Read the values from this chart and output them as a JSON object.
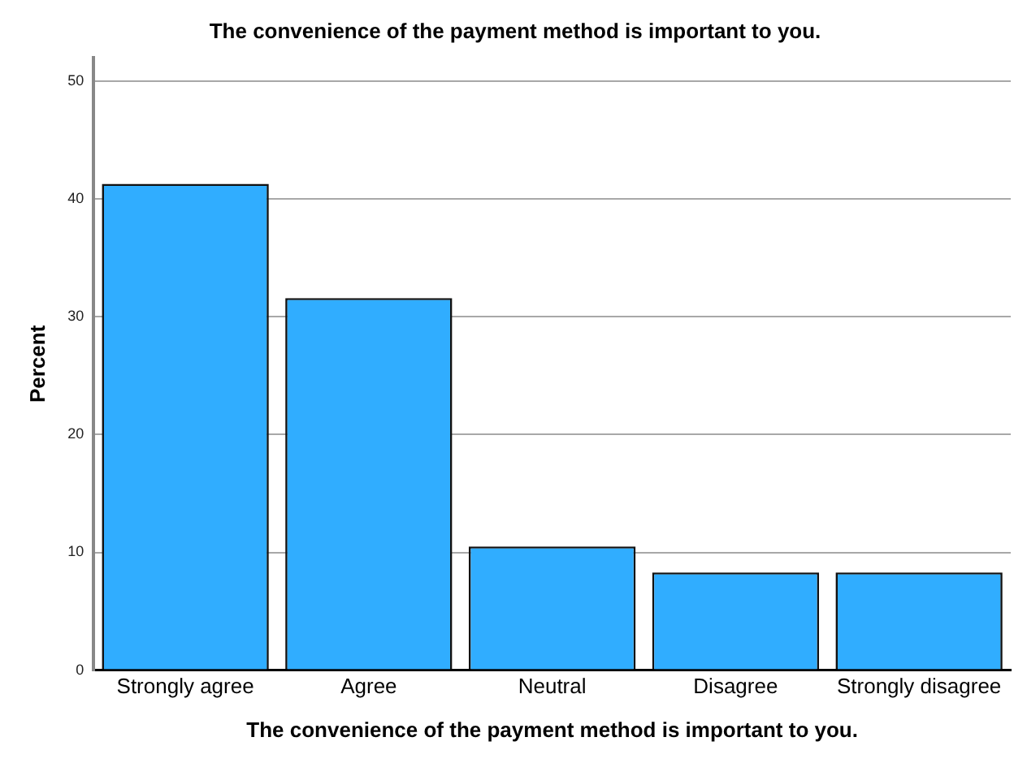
{
  "chart_data": {
    "type": "bar",
    "title": "The convenience of the payment method is important to you.",
    "xlabel": "The convenience of the payment method is important to you.",
    "ylabel": "Percent",
    "categories": [
      "Strongly agree",
      "Agree",
      "Neutral",
      "Disagree",
      "Strongly disagree"
    ],
    "values": [
      41.3,
      31.6,
      10.5,
      8.3,
      8.3
    ],
    "color": "#30adff",
    "ylim": [
      0,
      52
    ],
    "yticks": [
      0,
      10,
      20,
      30,
      40,
      50
    ],
    "grid": "y",
    "legend": false
  }
}
